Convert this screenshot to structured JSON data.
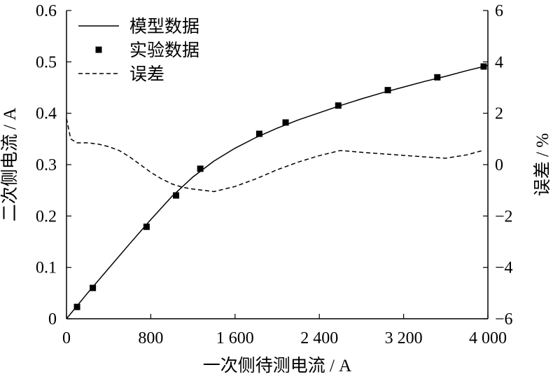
{
  "chart_data": {
    "type": "line",
    "xlabel": "一次侧待测电流 / A",
    "ylabel_left": "二次侧电流 / A",
    "ylabel_right": "误差 / %",
    "x_ticks": [
      0,
      800,
      1600,
      2400,
      3200,
      4000
    ],
    "x_tick_labels": [
      "0",
      "800",
      "1 600",
      "2 400",
      "3 200",
      "4 000"
    ],
    "y_left_ticks": [
      0,
      0.1,
      0.2,
      0.3,
      0.4,
      0.5,
      0.6
    ],
    "y_left_tick_labels": [
      "0",
      "0.1",
      "0.2",
      "0.3",
      "0.4",
      "0.5",
      "0.6"
    ],
    "y_right_ticks": [
      -6,
      -4,
      -2,
      0,
      2,
      4,
      6
    ],
    "y_right_tick_labels": [
      "−6",
      "−4",
      "−2",
      "0",
      "2",
      "4",
      "6"
    ],
    "xlim": [
      0,
      4000
    ],
    "ylim_left": [
      0,
      0.6
    ],
    "ylim_right": [
      -6,
      6
    ],
    "grid": false,
    "legend_position": "top-left",
    "series": [
      {
        "name": "模型数据",
        "style": "solid-line",
        "axis": "left",
        "x": [
          0,
          200,
          400,
          600,
          800,
          1000,
          1200,
          1400,
          1600,
          1800,
          2000,
          2200,
          2400,
          2600,
          2800,
          3000,
          3200,
          3400,
          3600,
          3800,
          4000
        ],
        "y": [
          0,
          0.05,
          0.098,
          0.146,
          0.193,
          0.238,
          0.276,
          0.307,
          0.332,
          0.353,
          0.371,
          0.387,
          0.401,
          0.415,
          0.428,
          0.44,
          0.451,
          0.462,
          0.472,
          0.483,
          0.493
        ]
      },
      {
        "name": "实验数据",
        "style": "square-marker",
        "axis": "left",
        "x": [
          100,
          250,
          760,
          1040,
          1270,
          1830,
          2080,
          2580,
          3050,
          3520,
          3960
        ],
        "y": [
          0.023,
          0.06,
          0.179,
          0.24,
          0.292,
          0.36,
          0.382,
          0.415,
          0.445,
          0.47,
          0.491
        ]
      },
      {
        "name": "误差",
        "style": "dashed-line",
        "axis": "right",
        "x": [
          0,
          40,
          100,
          200,
          300,
          400,
          500,
          600,
          700,
          800,
          900,
          1000,
          1100,
          1200,
          1300,
          1400,
          1600,
          1800,
          2000,
          2200,
          2400,
          2600,
          2800,
          3000,
          3200,
          3400,
          3600,
          3800,
          3950
        ],
        "y": [
          1.8,
          1.0,
          0.85,
          0.85,
          0.8,
          0.7,
          0.55,
          0.3,
          0.0,
          -0.3,
          -0.55,
          -0.75,
          -0.88,
          -0.95,
          -1.0,
          -1.05,
          -0.85,
          -0.55,
          -0.2,
          0.1,
          0.35,
          0.55,
          0.48,
          0.42,
          0.36,
          0.3,
          0.25,
          0.38,
          0.55
        ]
      }
    ]
  }
}
